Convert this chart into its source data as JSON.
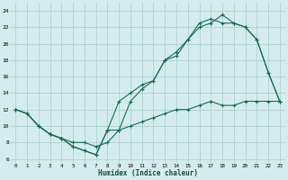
{
  "xlabel": "Humidex (Indice chaleur)",
  "bg_color": "#d4ecec",
  "grid_color": "#a8cccc",
  "line_color": "#1a6a5a",
  "xlim": [
    -0.5,
    23.5
  ],
  "ylim": [
    5.5,
    25
  ],
  "xticks": [
    0,
    1,
    2,
    3,
    4,
    5,
    6,
    7,
    8,
    9,
    10,
    11,
    12,
    13,
    14,
    15,
    16,
    17,
    18,
    19,
    20,
    21,
    22,
    23
  ],
  "yticks": [
    6,
    8,
    10,
    12,
    14,
    16,
    18,
    20,
    22,
    24
  ],
  "line1_x": [
    0,
    1,
    2,
    3,
    4,
    5,
    6,
    7,
    8,
    9,
    10,
    11,
    12,
    13,
    14,
    15,
    16,
    17,
    18,
    19,
    20,
    21,
    22,
    23
  ],
  "line1_y": [
    12,
    11.5,
    10,
    9,
    8.5,
    7.5,
    7,
    6.5,
    9.5,
    13,
    14,
    15,
    15.5,
    18,
    18.5,
    20.5,
    22,
    22.5,
    23.5,
    22.5,
    22,
    20.5,
    16.5,
    13
  ],
  "line2_x": [
    0,
    1,
    2,
    3,
    4,
    5,
    6,
    7,
    8,
    9,
    10,
    11,
    12,
    13,
    14,
    15,
    16,
    17,
    18,
    19,
    20,
    21,
    22,
    23
  ],
  "line2_y": [
    12,
    11.5,
    10,
    9,
    8.5,
    7.5,
    7,
    6.5,
    9.5,
    9.5,
    13,
    14.5,
    15.5,
    18,
    19,
    20.5,
    22.5,
    23.0,
    22.5,
    22.5,
    22,
    20.5,
    16.5,
    13
  ],
  "line3_x": [
    0,
    1,
    2,
    3,
    4,
    5,
    6,
    7,
    8,
    9,
    10,
    11,
    12,
    13,
    14,
    15,
    16,
    17,
    18,
    19,
    20,
    21,
    22,
    23
  ],
  "line3_y": [
    12,
    11.5,
    10,
    9,
    8.5,
    8,
    8,
    7.5,
    8,
    9.5,
    10,
    10.5,
    11,
    11.5,
    12,
    12,
    12.5,
    13,
    12.5,
    12.5,
    13,
    13,
    13,
    13
  ]
}
